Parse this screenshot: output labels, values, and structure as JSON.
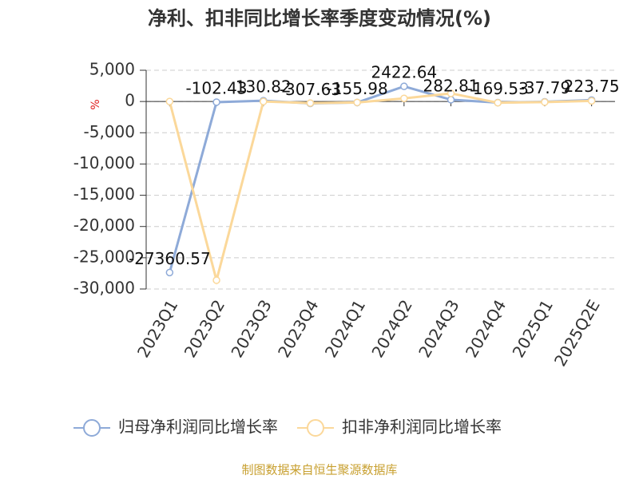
{
  "chart_data": {
    "type": "line",
    "title": "净利、扣非同比增长率季度变动情况(%)",
    "y_label": "%",
    "source": "制图数据来自恒生聚源数据库",
    "categories": [
      "2023Q1",
      "2023Q2",
      "2023Q3",
      "2023Q4",
      "2024Q1",
      "2024Q2",
      "2024Q3",
      "2024Q4",
      "2025Q1",
      "2025Q2E"
    ],
    "series": [
      {
        "name": "归母净利润同比增长率",
        "color": "#8eaad8",
        "values": [
          -27360.57,
          -102.43,
          130.82,
          -307.63,
          -155.98,
          2422.64,
          282.81,
          -169.53,
          -37.79,
          223.75
        ],
        "show_labels": true
      },
      {
        "name": "扣非净利润同比增长率",
        "color": "#fbd89a",
        "values": [
          0,
          -28600,
          0,
          -250,
          -150,
          500,
          1300,
          -200,
          -100,
          100
        ],
        "show_labels": false
      }
    ],
    "ylim": [
      -30000,
      5000
    ],
    "yticks": [
      {
        "value": 5000,
        "label": "5,000"
      },
      0,
      {
        "value": -5000,
        "label": "-5,000"
      },
      {
        "value": -10000,
        "label": "-10,000"
      },
      {
        "value": -15000,
        "label": "-15,000"
      },
      {
        "value": -20000,
        "label": "-20,000"
      },
      {
        "value": -25000,
        "label": "-25,000"
      },
      {
        "value": -30000,
        "label": "-30,000"
      }
    ],
    "grid": true
  }
}
